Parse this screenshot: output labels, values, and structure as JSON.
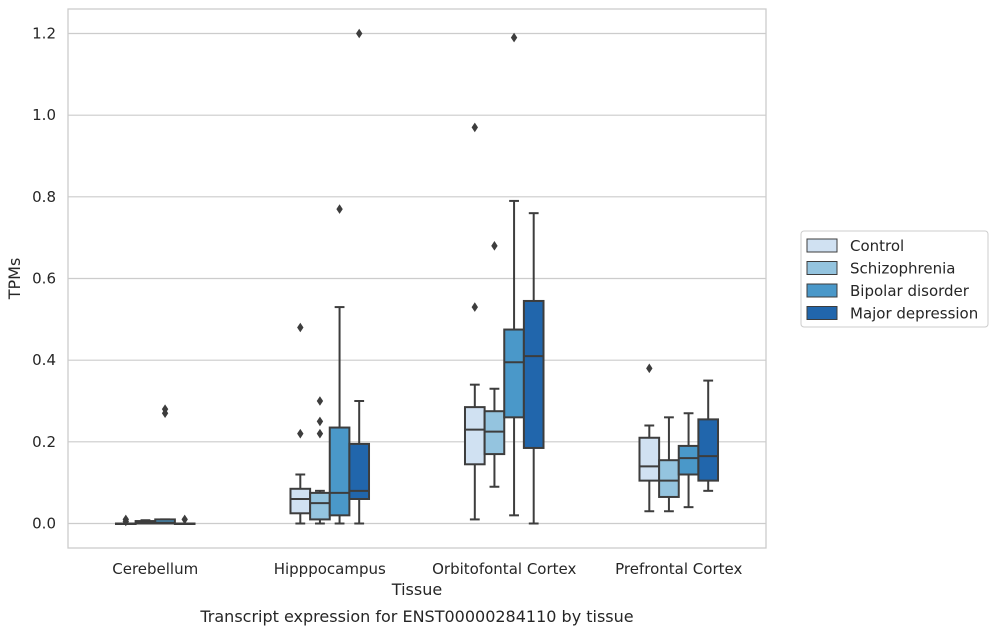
{
  "chart_data": {
    "type": "boxplot",
    "caption": "Transcript expression for ENST00000284110 by tissue",
    "xlabel": "Tissue",
    "ylabel": "TPMs",
    "ylim": [
      -0.06,
      1.26
    ],
    "yticks": [
      0.0,
      0.2,
      0.4,
      0.6,
      0.8,
      1.0,
      1.2
    ],
    "ytick_labels": [
      "0.0",
      "0.2",
      "0.4",
      "0.6",
      "0.8",
      "1.0",
      "1.2"
    ],
    "grid": "horizontal",
    "legend_position": "right",
    "categories": [
      "Cerebellum",
      "Hipppocampus",
      "Orbitofontal Cortex",
      "Prefrontal Cortex"
    ],
    "series": [
      {
        "name": "Control",
        "color": "#d0e1f2",
        "boxes": [
          {
            "whislo": 0.0,
            "q1": 0.0,
            "med": 0.0,
            "q3": 0.0,
            "whishi": 0.0,
            "fliers": [
              0.01,
              0.005
            ]
          },
          {
            "whislo": 0.0,
            "q1": 0.025,
            "med": 0.06,
            "q3": 0.085,
            "whishi": 0.12,
            "fliers": [
              0.22,
              0.48
            ]
          },
          {
            "whislo": 0.01,
            "q1": 0.145,
            "med": 0.23,
            "q3": 0.285,
            "whishi": 0.34,
            "fliers": [
              0.53,
              0.97
            ]
          },
          {
            "whislo": 0.03,
            "q1": 0.105,
            "med": 0.14,
            "q3": 0.21,
            "whishi": 0.24,
            "fliers": [
              0.38
            ]
          }
        ]
      },
      {
        "name": "Schizophrenia",
        "color": "#94c4df",
        "boxes": [
          {
            "whislo": 0.0,
            "q1": 0.0,
            "med": 0.003,
            "q3": 0.006,
            "whishi": 0.008,
            "fliers": []
          },
          {
            "whislo": 0.0,
            "q1": 0.01,
            "med": 0.05,
            "q3": 0.075,
            "whishi": 0.08,
            "fliers": [
              0.22,
              0.25,
              0.3
            ]
          },
          {
            "whislo": 0.09,
            "q1": 0.17,
            "med": 0.225,
            "q3": 0.275,
            "whishi": 0.33,
            "fliers": [
              0.68
            ]
          },
          {
            "whislo": 0.03,
            "q1": 0.065,
            "med": 0.105,
            "q3": 0.155,
            "whishi": 0.26,
            "fliers": []
          }
        ]
      },
      {
        "name": "Bipolar disorder",
        "color": "#4a98c9",
        "boxes": [
          {
            "whislo": 0.0,
            "q1": 0.0,
            "med": 0.002,
            "q3": 0.01,
            "whishi": 0.01,
            "fliers": [
              0.27,
              0.28
            ]
          },
          {
            "whislo": 0.0,
            "q1": 0.02,
            "med": 0.075,
            "q3": 0.235,
            "whishi": 0.53,
            "fliers": [
              0.77
            ]
          },
          {
            "whislo": 0.02,
            "q1": 0.26,
            "med": 0.395,
            "q3": 0.475,
            "whishi": 0.79,
            "fliers": [
              1.19
            ]
          },
          {
            "whislo": 0.04,
            "q1": 0.12,
            "med": 0.16,
            "q3": 0.19,
            "whishi": 0.27,
            "fliers": []
          }
        ]
      },
      {
        "name": "Major depression",
        "color": "#2166ac",
        "boxes": [
          {
            "whislo": 0.0,
            "q1": 0.0,
            "med": 0.0,
            "q3": 0.0,
            "whishi": 0.0,
            "fliers": [
              0.01
            ]
          },
          {
            "whislo": 0.0,
            "q1": 0.06,
            "med": 0.08,
            "q3": 0.195,
            "whishi": 0.3,
            "fliers": [
              1.2
            ]
          },
          {
            "whislo": 0.0,
            "q1": 0.185,
            "med": 0.41,
            "q3": 0.545,
            "whishi": 0.76,
            "fliers": []
          },
          {
            "whislo": 0.08,
            "q1": 0.105,
            "med": 0.165,
            "q3": 0.255,
            "whishi": 0.35,
            "fliers": []
          }
        ]
      }
    ]
  }
}
